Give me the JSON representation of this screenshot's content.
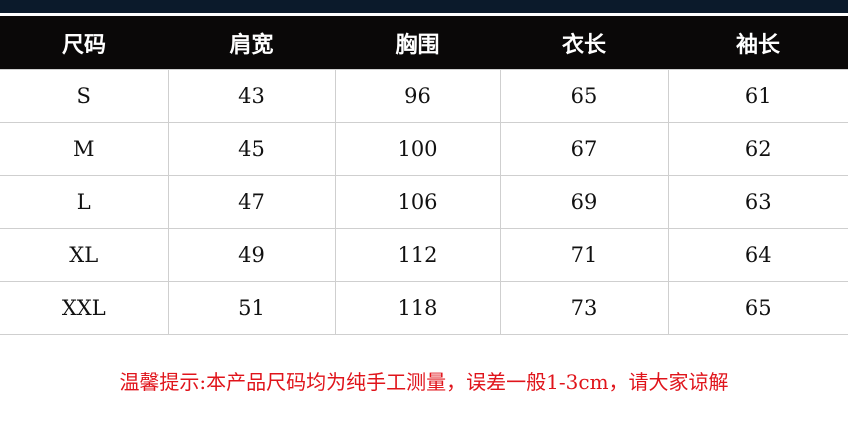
{
  "headers": [
    "尺码",
    "肩宽",
    "胸围",
    "衣长",
    "袖长"
  ],
  "rows": [
    [
      "S",
      "43",
      "96",
      "65",
      "61"
    ],
    [
      "M",
      "45",
      "100",
      "67",
      "62"
    ],
    [
      "L",
      "47",
      "106",
      "69",
      "63"
    ],
    [
      "XL",
      "49",
      "112",
      "71",
      "64"
    ],
    [
      "XXL",
      "51",
      "118",
      "73",
      "65"
    ]
  ],
  "note": "温馨提示:本产品尺码均为纯手工测量，误差一般1-3cm，请大家谅解",
  "colors": {
    "header_bg": "#0a0808",
    "note": "#e0141b",
    "top_band": "#0b1a2b"
  }
}
